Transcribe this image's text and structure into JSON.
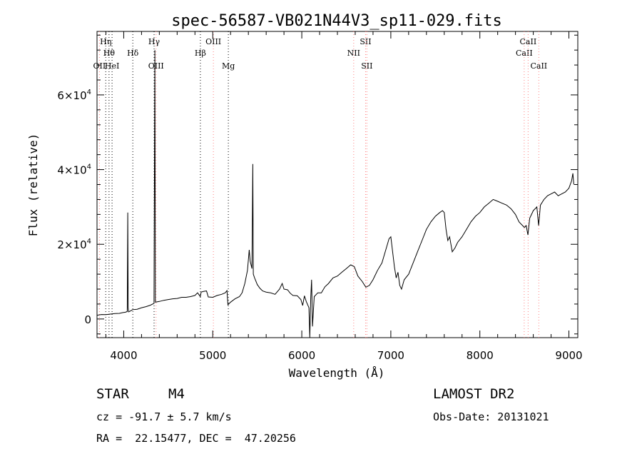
{
  "chart_data": {
    "type": "line",
    "title": "spec-56587-VB021N44V3_sp11-029.fits",
    "xlabel": "Wavelength (Å)",
    "ylabel": "Flux (relative)",
    "xlim": [
      3700,
      9100
    ],
    "ylim": [
      -5000,
      77000
    ],
    "x_ticks": [
      4000,
      5000,
      6000,
      7000,
      8000,
      9000
    ],
    "y_ticks": [
      {
        "value": 0,
        "label": "0"
      },
      {
        "value": 20000,
        "label": "2×10",
        "exp": "4"
      },
      {
        "value": 40000,
        "label": "4×10",
        "exp": "4"
      },
      {
        "value": 60000,
        "label": "6×10",
        "exp": "4"
      }
    ],
    "grid": false,
    "series": [
      {
        "color": "#000000",
        "points": [
          [
            3700,
            1000
          ],
          [
            3750,
            1200
          ],
          [
            3800,
            1150
          ],
          [
            3850,
            1300
          ],
          [
            3900,
            1450
          ],
          [
            3950,
            1500
          ],
          [
            3990,
            1700
          ],
          [
            4020,
            1800
          ],
          [
            4040,
            2000
          ],
          [
            4045,
            28500
          ],
          [
            4050,
            3000
          ],
          [
            4055,
            1900
          ],
          [
            4080,
            2200
          ],
          [
            4100,
            2500
          ],
          [
            4150,
            2600
          ],
          [
            4200,
            3000
          ],
          [
            4250,
            3300
          ],
          [
            4300,
            3700
          ],
          [
            4340,
            4200
          ],
          [
            4350,
            72000
          ],
          [
            4355,
            4500
          ],
          [
            4400,
            4700
          ],
          [
            4450,
            5000
          ],
          [
            4500,
            5200
          ],
          [
            4550,
            5400
          ],
          [
            4600,
            5500
          ],
          [
            4650,
            5800
          ],
          [
            4700,
            5800
          ],
          [
            4750,
            6000
          ],
          [
            4800,
            6300
          ],
          [
            4830,
            7000
          ],
          [
            4860,
            6000
          ],
          [
            4870,
            7200
          ],
          [
            4900,
            7400
          ],
          [
            4930,
            7500
          ],
          [
            4950,
            5900
          ],
          [
            5000,
            5800
          ],
          [
            5050,
            6300
          ],
          [
            5100,
            6600
          ],
          [
            5140,
            7000
          ],
          [
            5160,
            7600
          ],
          [
            5170,
            3800
          ],
          [
            5200,
            4500
          ],
          [
            5250,
            5400
          ],
          [
            5300,
            6000
          ],
          [
            5330,
            7000
          ],
          [
            5360,
            9500
          ],
          [
            5390,
            13000
          ],
          [
            5410,
            18500
          ],
          [
            5420,
            15500
          ],
          [
            5440,
            13500
          ],
          [
            5450,
            41500
          ],
          [
            5455,
            12000
          ],
          [
            5470,
            11000
          ],
          [
            5500,
            9200
          ],
          [
            5530,
            8200
          ],
          [
            5560,
            7500
          ],
          [
            5600,
            7200
          ],
          [
            5650,
            7000
          ],
          [
            5700,
            6600
          ],
          [
            5750,
            8000
          ],
          [
            5780,
            9500
          ],
          [
            5800,
            8000
          ],
          [
            5840,
            7800
          ],
          [
            5870,
            6900
          ],
          [
            5900,
            6300
          ],
          [
            5950,
            6200
          ],
          [
            5990,
            5200
          ],
          [
            6010,
            3600
          ],
          [
            6030,
            6200
          ],
          [
            6050,
            4700
          ],
          [
            6080,
            3000
          ],
          [
            6090,
            -5000
          ],
          [
            6100,
            5500
          ],
          [
            6110,
            10500
          ],
          [
            6120,
            -2000
          ],
          [
            6140,
            6000
          ],
          [
            6180,
            7000
          ],
          [
            6220,
            7000
          ],
          [
            6260,
            8600
          ],
          [
            6300,
            9500
          ],
          [
            6350,
            11000
          ],
          [
            6400,
            11500
          ],
          [
            6450,
            12500
          ],
          [
            6500,
            13500
          ],
          [
            6550,
            14500
          ],
          [
            6590,
            14000
          ],
          [
            6630,
            11500
          ],
          [
            6680,
            10000
          ],
          [
            6720,
            8500
          ],
          [
            6760,
            9000
          ],
          [
            6800,
            10500
          ],
          [
            6850,
            13000
          ],
          [
            6900,
            15000
          ],
          [
            6950,
            19000
          ],
          [
            6980,
            21500
          ],
          [
            7000,
            22000
          ],
          [
            7040,
            14000
          ],
          [
            7060,
            11000
          ],
          [
            7080,
            12500
          ],
          [
            7100,
            9000
          ],
          [
            7120,
            8000
          ],
          [
            7150,
            10500
          ],
          [
            7200,
            12000
          ],
          [
            7250,
            15000
          ],
          [
            7300,
            18000
          ],
          [
            7350,
            21000
          ],
          [
            7400,
            24000
          ],
          [
            7450,
            26000
          ],
          [
            7500,
            27500
          ],
          [
            7550,
            28500
          ],
          [
            7580,
            29000
          ],
          [
            7600,
            28500
          ],
          [
            7620,
            24000
          ],
          [
            7640,
            21000
          ],
          [
            7660,
            22000
          ],
          [
            7690,
            18000
          ],
          [
            7720,
            19000
          ],
          [
            7750,
            20500
          ],
          [
            7800,
            22000
          ],
          [
            7850,
            24000
          ],
          [
            7900,
            26000
          ],
          [
            7950,
            27500
          ],
          [
            8000,
            28500
          ],
          [
            8050,
            30000
          ],
          [
            8100,
            31000
          ],
          [
            8150,
            32000
          ],
          [
            8200,
            31500
          ],
          [
            8250,
            31000
          ],
          [
            8300,
            30500
          ],
          [
            8350,
            29500
          ],
          [
            8400,
            28000
          ],
          [
            8440,
            26000
          ],
          [
            8480,
            25000
          ],
          [
            8500,
            24500
          ],
          [
            8520,
            25000
          ],
          [
            8540,
            22500
          ],
          [
            8560,
            27000
          ],
          [
            8600,
            29000
          ],
          [
            8640,
            30000
          ],
          [
            8660,
            25000
          ],
          [
            8680,
            30500
          ],
          [
            8720,
            32000
          ],
          [
            8760,
            33000
          ],
          [
            8800,
            33500
          ],
          [
            8840,
            34000
          ],
          [
            8880,
            33000
          ],
          [
            8920,
            33500
          ],
          [
            8960,
            34000
          ],
          [
            9000,
            35000
          ],
          [
            9030,
            37000
          ],
          [
            9045,
            39000
          ],
          [
            9055,
            36000
          ]
        ]
      }
    ],
    "lines": [
      {
        "x": 3727,
        "color": "#ff8080",
        "label": "OII",
        "row": 3
      },
      {
        "x": 3798,
        "color": "#000000",
        "label": "Hη",
        "row": 1
      },
      {
        "x": 3835,
        "color": "#000000",
        "label": "Hθ",
        "row": 2
      },
      {
        "x": 3869,
        "color": "#000000",
        "label": "HeI",
        "row": 3
      },
      {
        "x": 4102,
        "color": "#000000",
        "label": "Hδ",
        "row": 2
      },
      {
        "x": 4341,
        "color": "#000000",
        "label": "Hγ",
        "row": 1
      },
      {
        "x": 4363,
        "color": "#ff8080",
        "label": "OIII",
        "row": 3
      },
      {
        "x": 4861,
        "color": "#000000",
        "label": "Hβ",
        "row": 2
      },
      {
        "x": 5007,
        "color": "#ff8080",
        "label": "OIII",
        "row": 1
      },
      {
        "x": 5175,
        "color": "#000000",
        "label": "Mg",
        "row": 3
      },
      {
        "x": 6583,
        "color": "#ff8080",
        "label": "NII",
        "row": 2
      },
      {
        "x": 6716,
        "color": "#ff8080",
        "label": "SII",
        "row": 1
      },
      {
        "x": 6731,
        "color": "#ff8080",
        "label": "SII",
        "row": 3
      },
      {
        "x": 8498,
        "color": "#ff8080",
        "label": "CaII",
        "row": 2
      },
      {
        "x": 8542,
        "color": "#ff8080",
        "label": "CaII",
        "row": 1
      },
      {
        "x": 8662,
        "color": "#ff8080",
        "label": "CaII",
        "row": 3
      }
    ]
  },
  "info": {
    "class_label": "STAR",
    "subclass": "M4",
    "survey": "LAMOST DR2",
    "redshift": "cz = -91.7 ± 5.7 km/s",
    "obs_date": "Obs-Date: 20131021",
    "coords": "RA =  22.15477, DEC =  47.20256"
  }
}
